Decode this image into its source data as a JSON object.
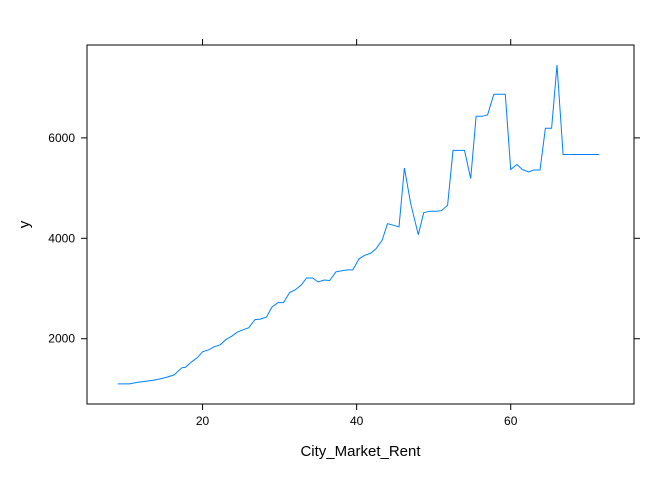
{
  "chart_data": {
    "type": "line",
    "xlabel": "City_Market_Rent",
    "ylabel": "y",
    "xlim": [
      5,
      76
    ],
    "ylim": [
      700,
      7850
    ],
    "x_ticks": [
      20,
      40,
      60
    ],
    "x_tick_labels": [
      "20",
      "40",
      "60"
    ],
    "y_ticks": [
      2000,
      4000,
      6000
    ],
    "y_tick_labels": [
      "2000",
      "4000",
      "6000"
    ],
    "grid": false,
    "line_color": "#0080ff",
    "series": [
      {
        "x": [
          9.0,
          10.5,
          11.5,
          12.5,
          13.5,
          14.5,
          15.5,
          16.3,
          17.3,
          17.8,
          18.5,
          19.3,
          20.0,
          20.8,
          21.5,
          22.3,
          23.0,
          23.8,
          24.5,
          25.3,
          26.0,
          26.8,
          27.5,
          28.3,
          29.0,
          29.8,
          30.5,
          31.3,
          32.0,
          32.8,
          33.5,
          34.3,
          35.0,
          35.8,
          36.5,
          37.3,
          38.0,
          38.8,
          39.5,
          40.3,
          41.0,
          41.8,
          42.5,
          43.3,
          44.0,
          44.8,
          45.5,
          46.2,
          47.0,
          48.0,
          48.7,
          49.5,
          50.3,
          51.0,
          51.8,
          52.5,
          53.3,
          54.0,
          54.8,
          55.5,
          56.3,
          57.0,
          57.8,
          58.6,
          59.3,
          60.0,
          60.8,
          61.5,
          62.3,
          63.0,
          63.8,
          64.5,
          65.3,
          66.0,
          66.8,
          67.5,
          71.5
        ],
        "y": [
          1100,
          1100,
          1130,
          1150,
          1170,
          1200,
          1240,
          1280,
          1420,
          1430,
          1530,
          1620,
          1740,
          1780,
          1840,
          1880,
          1980,
          2050,
          2130,
          2180,
          2220,
          2380,
          2390,
          2430,
          2630,
          2720,
          2720,
          2920,
          2970,
          3070,
          3210,
          3210,
          3130,
          3170,
          3160,
          3330,
          3350,
          3370,
          3370,
          3590,
          3660,
          3700,
          3790,
          3960,
          4290,
          4260,
          4230,
          5400,
          4700,
          4070,
          4510,
          4540,
          4540,
          4550,
          4660,
          5750,
          5750,
          5750,
          5190,
          6430,
          6430,
          6460,
          6870,
          6870,
          6870,
          5370,
          5470,
          5370,
          5320,
          5360,
          5360,
          6190,
          6190,
          7450,
          5670,
          5670,
          5670
        ]
      }
    ]
  }
}
